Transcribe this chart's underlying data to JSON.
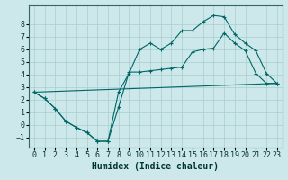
{
  "background_color": "#cce8ea",
  "grid_color": "#aacccc",
  "line_color": "#006666",
  "xlabel": "Humidex (Indice chaleur)",
  "xlim": [
    -0.5,
    23.5
  ],
  "ylim": [
    -1.8,
    9.5
  ],
  "yticks": [
    -1,
    0,
    1,
    2,
    3,
    4,
    5,
    6,
    7,
    8
  ],
  "xticks": [
    0,
    1,
    2,
    3,
    4,
    5,
    6,
    7,
    8,
    9,
    10,
    11,
    12,
    13,
    14,
    15,
    16,
    17,
    18,
    19,
    20,
    21,
    22,
    23
  ],
  "line1_x": [
    0,
    1,
    2,
    3,
    4,
    5,
    6,
    7,
    8,
    9,
    10,
    11,
    12,
    13,
    14,
    15,
    16,
    17,
    18,
    19,
    20,
    21,
    22,
    23
  ],
  "line1_y": [
    2.6,
    2.1,
    1.3,
    0.3,
    -0.2,
    -0.6,
    -1.3,
    -1.3,
    2.6,
    4.1,
    6.0,
    6.5,
    6.0,
    6.5,
    7.5,
    7.5,
    8.2,
    8.7,
    8.6,
    7.2,
    6.5,
    5.9,
    4.1,
    3.3
  ],
  "line2_x": [
    0,
    1,
    2,
    3,
    4,
    5,
    6,
    7,
    8,
    9,
    10,
    11,
    12,
    13,
    14,
    15,
    16,
    17,
    18,
    19,
    20,
    21,
    22,
    23
  ],
  "line2_y": [
    2.6,
    2.1,
    1.3,
    0.3,
    -0.2,
    -0.6,
    -1.3,
    -1.3,
    1.4,
    4.2,
    4.2,
    4.3,
    4.4,
    4.5,
    4.6,
    5.8,
    6.0,
    6.1,
    7.3,
    6.5,
    5.9,
    4.1,
    3.3,
    3.3
  ],
  "line3_x": [
    0,
    23
  ],
  "line3_y": [
    2.6,
    3.3
  ],
  "xlabel_fontsize": 7,
  "tick_fontsize": 6
}
